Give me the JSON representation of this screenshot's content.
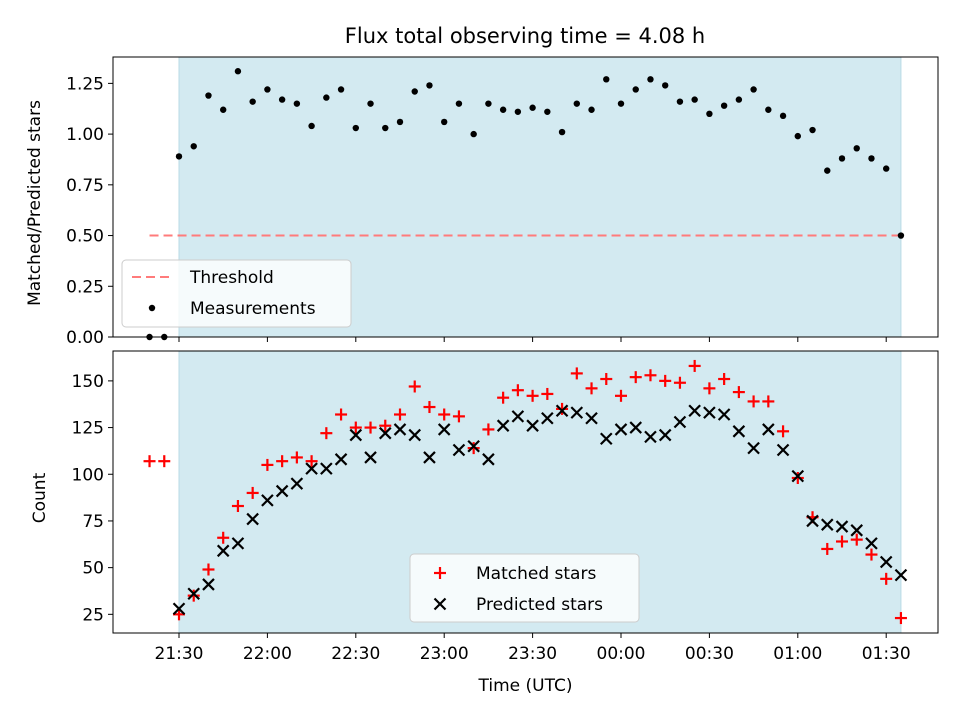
{
  "chart_data": [
    {
      "type": "scatter",
      "title": "Flux total observing time = 4.08 h",
      "ylabel": "Matched/Predicted stars",
      "xlabel": "",
      "ylim": [
        0,
        1.38
      ],
      "yticks": [
        0.0,
        0.25,
        0.5,
        0.75,
        1.0,
        1.25
      ],
      "ytick_labels": [
        "0.00",
        "0.25",
        "0.50",
        "0.75",
        "1.00",
        "1.25"
      ],
      "grid": false,
      "legend_position": "lower-left",
      "observing_window": [
        "21:30",
        "01:35"
      ],
      "threshold": {
        "name": "Threshold",
        "value": 0.5,
        "x_start": "21:20",
        "x_end": "01:35",
        "color": "#ff7b7b"
      },
      "series": [
        {
          "name": "Measurements",
          "color": "#000000",
          "points": [
            [
              "21:20",
              0.0
            ],
            [
              "21:25",
              0.0
            ],
            [
              "21:30",
              0.89
            ],
            [
              "21:35",
              0.94
            ],
            [
              "21:40",
              1.19
            ],
            [
              "21:45",
              1.12
            ],
            [
              "21:50",
              1.31
            ],
            [
              "21:55",
              1.16
            ],
            [
              "22:00",
              1.22
            ],
            [
              "22:05",
              1.17
            ],
            [
              "22:10",
              1.15
            ],
            [
              "22:15",
              1.04
            ],
            [
              "22:20",
              1.18
            ],
            [
              "22:25",
              1.22
            ],
            [
              "22:30",
              1.03
            ],
            [
              "22:35",
              1.15
            ],
            [
              "22:40",
              1.03
            ],
            [
              "22:45",
              1.06
            ],
            [
              "22:50",
              1.21
            ],
            [
              "22:55",
              1.24
            ],
            [
              "23:00",
              1.06
            ],
            [
              "23:05",
              1.15
            ],
            [
              "23:10",
              1.0
            ],
            [
              "23:15",
              1.15
            ],
            [
              "23:20",
              1.12
            ],
            [
              "23:25",
              1.11
            ],
            [
              "23:30",
              1.13
            ],
            [
              "23:35",
              1.11
            ],
            [
              "23:40",
              1.01
            ],
            [
              "23:45",
              1.15
            ],
            [
              "23:50",
              1.12
            ],
            [
              "23:55",
              1.27
            ],
            [
              "00:00",
              1.15
            ],
            [
              "00:05",
              1.22
            ],
            [
              "00:10",
              1.27
            ],
            [
              "00:15",
              1.24
            ],
            [
              "00:20",
              1.16
            ],
            [
              "00:25",
              1.17
            ],
            [
              "00:30",
              1.1
            ],
            [
              "00:35",
              1.14
            ],
            [
              "00:40",
              1.17
            ],
            [
              "00:45",
              1.22
            ],
            [
              "00:50",
              1.12
            ],
            [
              "00:55",
              1.09
            ],
            [
              "01:00",
              0.99
            ],
            [
              "01:05",
              1.02
            ],
            [
              "01:10",
              0.82
            ],
            [
              "01:15",
              0.88
            ],
            [
              "01:20",
              0.93
            ],
            [
              "01:25",
              0.88
            ],
            [
              "01:30",
              0.83
            ],
            [
              "01:35",
              0.5
            ]
          ]
        }
      ]
    },
    {
      "type": "scatter",
      "title": "",
      "ylabel": "Count",
      "xlabel": "Time (UTC)",
      "ylim": [
        15,
        166
      ],
      "yticks": [
        25,
        50,
        75,
        100,
        125,
        150
      ],
      "ytick_labels": [
        "25",
        "50",
        "75",
        "100",
        "125",
        "150"
      ],
      "xticks": [
        "21:30",
        "22:00",
        "22:30",
        "23:00",
        "23:30",
        "00:00",
        "00:30",
        "01:00",
        "01:30"
      ],
      "grid": false,
      "legend_position": "lower-center",
      "observing_window": [
        "21:30",
        "01:35"
      ],
      "series": [
        {
          "name": "Matched stars",
          "marker": "plus",
          "color": "#ff0000",
          "points": [
            [
              "21:20",
              107
            ],
            [
              "21:25",
              107
            ],
            [
              "21:30",
              25
            ],
            [
              "21:35",
              35
            ],
            [
              "21:40",
              49
            ],
            [
              "21:45",
              66
            ],
            [
              "21:50",
              83
            ],
            [
              "21:55",
              90
            ],
            [
              "22:00",
              105
            ],
            [
              "22:05",
              107
            ],
            [
              "22:10",
              109
            ],
            [
              "22:15",
              107
            ],
            [
              "22:20",
              122
            ],
            [
              "22:25",
              132
            ],
            [
              "22:30",
              125
            ],
            [
              "22:35",
              125
            ],
            [
              "22:40",
              126
            ],
            [
              "22:45",
              132
            ],
            [
              "22:50",
              147
            ],
            [
              "22:55",
              136
            ],
            [
              "23:00",
              132
            ],
            [
              "23:05",
              131
            ],
            [
              "23:10",
              114
            ],
            [
              "23:15",
              124
            ],
            [
              "23:20",
              141
            ],
            [
              "23:25",
              145
            ],
            [
              "23:30",
              142
            ],
            [
              "23:35",
              143
            ],
            [
              "23:40",
              135
            ],
            [
              "23:45",
              154
            ],
            [
              "23:50",
              146
            ],
            [
              "23:55",
              151
            ],
            [
              "00:00",
              142
            ],
            [
              "00:05",
              152
            ],
            [
              "00:10",
              153
            ],
            [
              "00:15",
              150
            ],
            [
              "00:20",
              149
            ],
            [
              "00:25",
              158
            ],
            [
              "00:30",
              146
            ],
            [
              "00:35",
              151
            ],
            [
              "00:40",
              144
            ],
            [
              "00:45",
              139
            ],
            [
              "00:50",
              139
            ],
            [
              "00:55",
              123
            ],
            [
              "01:00",
              98
            ],
            [
              "01:05",
              77
            ],
            [
              "01:10",
              60
            ],
            [
              "01:15",
              64
            ],
            [
              "01:20",
              65
            ],
            [
              "01:25",
              57
            ],
            [
              "01:30",
              44
            ],
            [
              "01:35",
              23
            ]
          ]
        },
        {
          "name": "Predicted stars",
          "marker": "x",
          "color": "#000000",
          "points": [
            [
              "21:30",
              28
            ],
            [
              "21:35",
              36
            ],
            [
              "21:40",
              41
            ],
            [
              "21:45",
              59
            ],
            [
              "21:50",
              63
            ],
            [
              "21:55",
              76
            ],
            [
              "22:00",
              86
            ],
            [
              "22:05",
              91
            ],
            [
              "22:10",
              95
            ],
            [
              "22:15",
              103
            ],
            [
              "22:20",
              103
            ],
            [
              "22:25",
              108
            ],
            [
              "22:30",
              121
            ],
            [
              "22:35",
              109
            ],
            [
              "22:40",
              122
            ],
            [
              "22:45",
              124
            ],
            [
              "22:50",
              121
            ],
            [
              "22:55",
              109
            ],
            [
              "23:00",
              124
            ],
            [
              "23:05",
              113
            ],
            [
              "23:10",
              115
            ],
            [
              "23:15",
              108
            ],
            [
              "23:20",
              126
            ],
            [
              "23:25",
              131
            ],
            [
              "23:30",
              126
            ],
            [
              "23:35",
              130
            ],
            [
              "23:40",
              134
            ],
            [
              "23:45",
              133
            ],
            [
              "23:50",
              130
            ],
            [
              "23:55",
              119
            ],
            [
              "00:00",
              124
            ],
            [
              "00:05",
              125
            ],
            [
              "00:10",
              120
            ],
            [
              "00:15",
              121
            ],
            [
              "00:20",
              128
            ],
            [
              "00:25",
              134
            ],
            [
              "00:30",
              133
            ],
            [
              "00:35",
              132
            ],
            [
              "00:40",
              123
            ],
            [
              "00:45",
              114
            ],
            [
              "00:50",
              124
            ],
            [
              "00:55",
              113
            ],
            [
              "01:00",
              99
            ],
            [
              "01:05",
              75
            ],
            [
              "01:10",
              73
            ],
            [
              "01:15",
              72
            ],
            [
              "01:20",
              70
            ],
            [
              "01:25",
              63
            ],
            [
              "01:30",
              53
            ],
            [
              "01:35",
              46
            ]
          ]
        }
      ]
    }
  ],
  "colors": {
    "observing_window": "#d3eaf1",
    "observing_window_edge": "#b8dbe6"
  }
}
